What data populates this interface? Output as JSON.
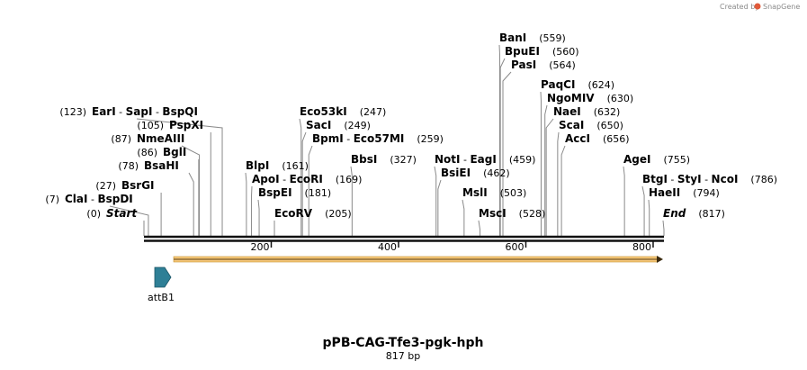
{
  "credit": {
    "prefix": "Created by",
    "brand": "SnapGene"
  },
  "map": {
    "title": "pPB-CAG-Tfe3-pgk-hph",
    "length_label": "817 bp",
    "length": 817,
    "ticks": [
      "200",
      "400",
      "600",
      "800"
    ],
    "tick_values": [
      200,
      400,
      600,
      800
    ]
  },
  "sites": [
    {
      "names": [
        "BanI"
      ],
      "pos": 559,
      "pos_label": "(559)"
    },
    {
      "names": [
        "BpuEI"
      ],
      "pos": 560,
      "pos_label": "(560)"
    },
    {
      "names": [
        "PasI"
      ],
      "pos": 564,
      "pos_label": "(564)"
    },
    {
      "names": [
        "PaqCI"
      ],
      "pos": 624,
      "pos_label": "(624)"
    },
    {
      "names": [
        "NgoMIV"
      ],
      "pos": 630,
      "pos_label": "(630)"
    },
    {
      "names": [
        "NaeI"
      ],
      "pos": 632,
      "pos_label": "(632)"
    },
    {
      "names": [
        "ScaI"
      ],
      "pos": 650,
      "pos_label": "(650)"
    },
    {
      "names": [
        "AccI"
      ],
      "pos": 656,
      "pos_label": "(656)"
    },
    {
      "names": [
        "AgeI"
      ],
      "pos": 755,
      "pos_label": "(755)"
    },
    {
      "names": [
        "BtgI",
        "StyI",
        "NcoI"
      ],
      "pos": 786,
      "pos_label": "(786)"
    },
    {
      "names": [
        "HaeII"
      ],
      "pos": 794,
      "pos_label": "(794)"
    },
    {
      "names": [
        "End"
      ],
      "pos": 817,
      "pos_label": "(817)",
      "italic": true
    },
    {
      "names": [
        "EarI",
        "SapI",
        "BspQI"
      ],
      "pos": 123,
      "pos_label": "(123)"
    },
    {
      "names": [
        "PspXI"
      ],
      "pos": 105,
      "pos_label": "(105)"
    },
    {
      "names": [
        "NmeAIII"
      ],
      "pos": 87,
      "pos_label": "(87)"
    },
    {
      "names": [
        "BglI"
      ],
      "pos": 86,
      "pos_label": "(86)"
    },
    {
      "names": [
        "BsaHI"
      ],
      "pos": 78,
      "pos_label": "(78)"
    },
    {
      "names": [
        "BsrGI"
      ],
      "pos": 27,
      "pos_label": "(27)"
    },
    {
      "names": [
        "ClaI",
        "BspDI"
      ],
      "pos": 7,
      "pos_label": "(7)"
    },
    {
      "names": [
        "Start"
      ],
      "pos": 0,
      "pos_label": "(0)",
      "italic": true
    },
    {
      "names": [
        "Eco53kI"
      ],
      "pos": 247,
      "pos_label": "(247)"
    },
    {
      "names": [
        "SacI"
      ],
      "pos": 249,
      "pos_label": "(249)"
    },
    {
      "names": [
        "BpmI",
        "Eco57MI"
      ],
      "pos": 259,
      "pos_label": "(259)"
    },
    {
      "names": [
        "BlpI"
      ],
      "pos": 161,
      "pos_label": "(161)"
    },
    {
      "names": [
        "ApoI",
        "EcoRI"
      ],
      "pos": 169,
      "pos_label": "(169)"
    },
    {
      "names": [
        "BspEI"
      ],
      "pos": 181,
      "pos_label": "(181)"
    },
    {
      "names": [
        "EcoRV"
      ],
      "pos": 205,
      "pos_label": "(205)"
    },
    {
      "names": [
        "BbsI"
      ],
      "pos": 327,
      "pos_label": "(327)"
    },
    {
      "names": [
        "NotI",
        "EagI"
      ],
      "pos": 459,
      "pos_label": "(459)"
    },
    {
      "names": [
        "BsiEI"
      ],
      "pos": 462,
      "pos_label": "(462)"
    },
    {
      "names": [
        "MslI"
      ],
      "pos": 503,
      "pos_label": "(503)"
    },
    {
      "names": [
        "MscI"
      ],
      "pos": 528,
      "pos_label": "(528)"
    }
  ],
  "features": [
    {
      "name": "attB1",
      "start": 20,
      "end": 50,
      "color": "#2e7f96",
      "direction": "forward"
    },
    {
      "name": "insert-arrow",
      "start": 50,
      "end": 817,
      "color": "#f5c77a",
      "direction": "forward"
    }
  ],
  "colors": {
    "backbone": "#111111",
    "leader": "#888888",
    "brand": "#e05a3a"
  }
}
